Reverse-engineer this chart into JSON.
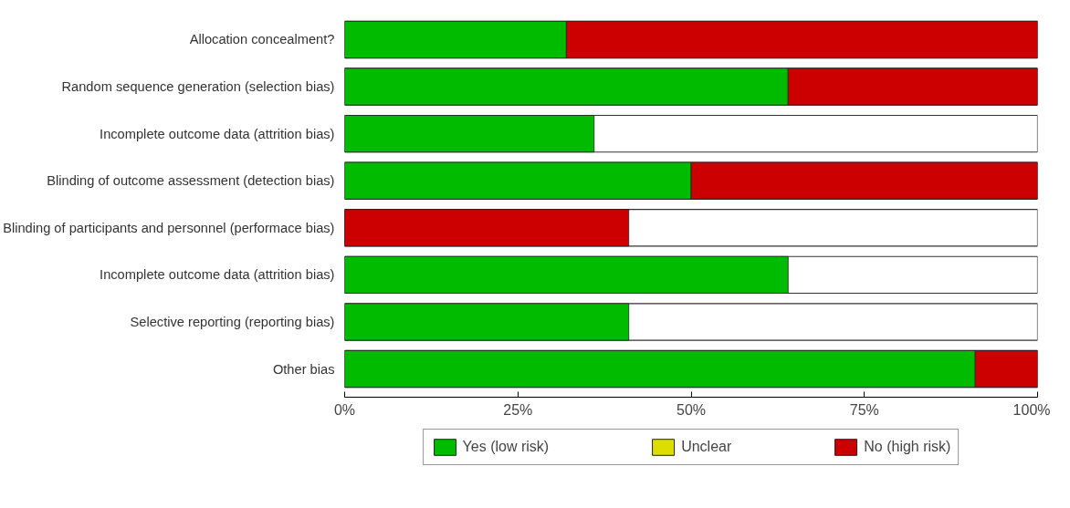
{
  "chart_data": {
    "type": "bar",
    "orientation": "horizontal",
    "stacked": true,
    "categories": [
      "Allocation concealment?",
      "Random sequence generation (selection bias)",
      "Incomplete outcome data (attrition bias)",
      "Blinding of outcome assessment (detection bias)",
      "Blinding of participants and personnel (performace bias)",
      "Incomplete outcome data (attrition bias)",
      "Selective reporting (reporting bias)",
      "Other bias"
    ],
    "series": [
      {
        "name": "Yes (low risk)",
        "color": "#00bb00",
        "values": [
          32,
          64,
          36,
          50,
          0,
          64,
          41,
          91
        ]
      },
      {
        "name": "Unclear",
        "color": "#dddd00",
        "values": [
          null,
          null,
          null,
          null,
          null,
          null,
          null,
          null
        ]
      },
      {
        "name": "No (high risk)",
        "color": "#cc0000",
        "values": [
          68,
          36,
          null,
          50,
          41,
          null,
          null,
          9
        ]
      }
    ],
    "xlim": [
      0,
      100
    ],
    "xticks": [
      {
        "value": 0,
        "label": "0%"
      },
      {
        "value": 25,
        "label": "25%"
      },
      {
        "value": 50,
        "label": "50%"
      },
      {
        "value": 75,
        "label": "75%"
      },
      {
        "value": 100,
        "label": "100%"
      }
    ],
    "grid": false,
    "legend": "bottom"
  }
}
